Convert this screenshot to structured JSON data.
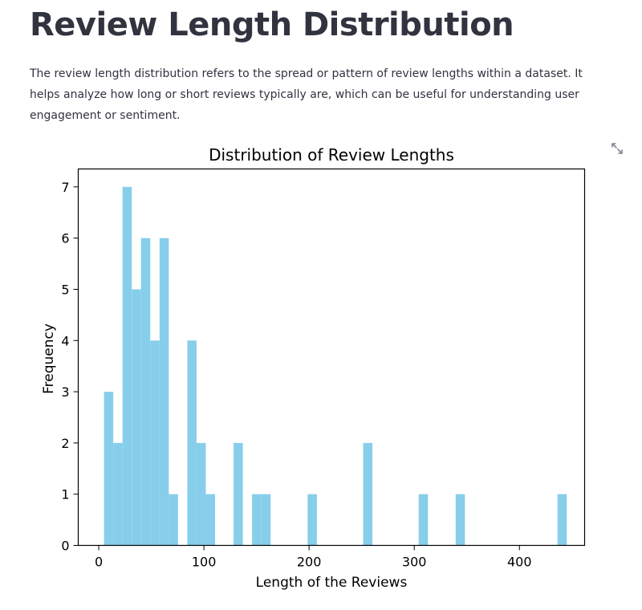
{
  "header": {
    "title": "Review Length Distribution",
    "description": "The review length distribution refers to the spread or pattern of review lengths within a dataset. It helps analyze how long or short reviews typically are, which can be useful for understanding user engagement or sentiment."
  },
  "toolbar": {
    "expand_icon": "fullscreen-expand-icon"
  },
  "chart_data": {
    "type": "bar",
    "title": "Distribution of Review Lengths",
    "xlabel": "Length of the Reviews",
    "ylabel": "Frequency",
    "xlim": [
      -19.5,
      462
    ],
    "ylim": [
      0,
      7.35
    ],
    "xticks": [
      0,
      100,
      200,
      300,
      400
    ],
    "yticks": [
      0,
      1,
      2,
      3,
      4,
      5,
      6,
      7
    ],
    "grid": false,
    "legend": "none",
    "bar_color": "#87ceeb",
    "bins": [
      {
        "x0": 5,
        "x1": 13.8,
        "count": 3
      },
      {
        "x0": 13.8,
        "x1": 22.6,
        "count": 2
      },
      {
        "x0": 22.6,
        "x1": 31.4,
        "count": 7
      },
      {
        "x0": 31.4,
        "x1": 40.2,
        "count": 5
      },
      {
        "x0": 40.2,
        "x1": 49,
        "count": 6
      },
      {
        "x0": 49,
        "x1": 57.8,
        "count": 4
      },
      {
        "x0": 57.8,
        "x1": 66.6,
        "count": 6
      },
      {
        "x0": 66.6,
        "x1": 75.4,
        "count": 1
      },
      {
        "x0": 84.2,
        "x1": 93,
        "count": 4
      },
      {
        "x0": 93,
        "x1": 101.8,
        "count": 2
      },
      {
        "x0": 101.8,
        "x1": 110.6,
        "count": 1
      },
      {
        "x0": 128.2,
        "x1": 137,
        "count": 2
      },
      {
        "x0": 145.8,
        "x1": 154.6,
        "count": 1
      },
      {
        "x0": 154.6,
        "x1": 163.4,
        "count": 1
      },
      {
        "x0": 198.6,
        "x1": 207.4,
        "count": 1
      },
      {
        "x0": 251.4,
        "x1": 260.2,
        "count": 2
      },
      {
        "x0": 304.2,
        "x1": 313,
        "count": 1
      },
      {
        "x0": 339.4,
        "x1": 348.2,
        "count": 1
      },
      {
        "x0": 436.2,
        "x1": 445,
        "count": 1
      }
    ]
  }
}
